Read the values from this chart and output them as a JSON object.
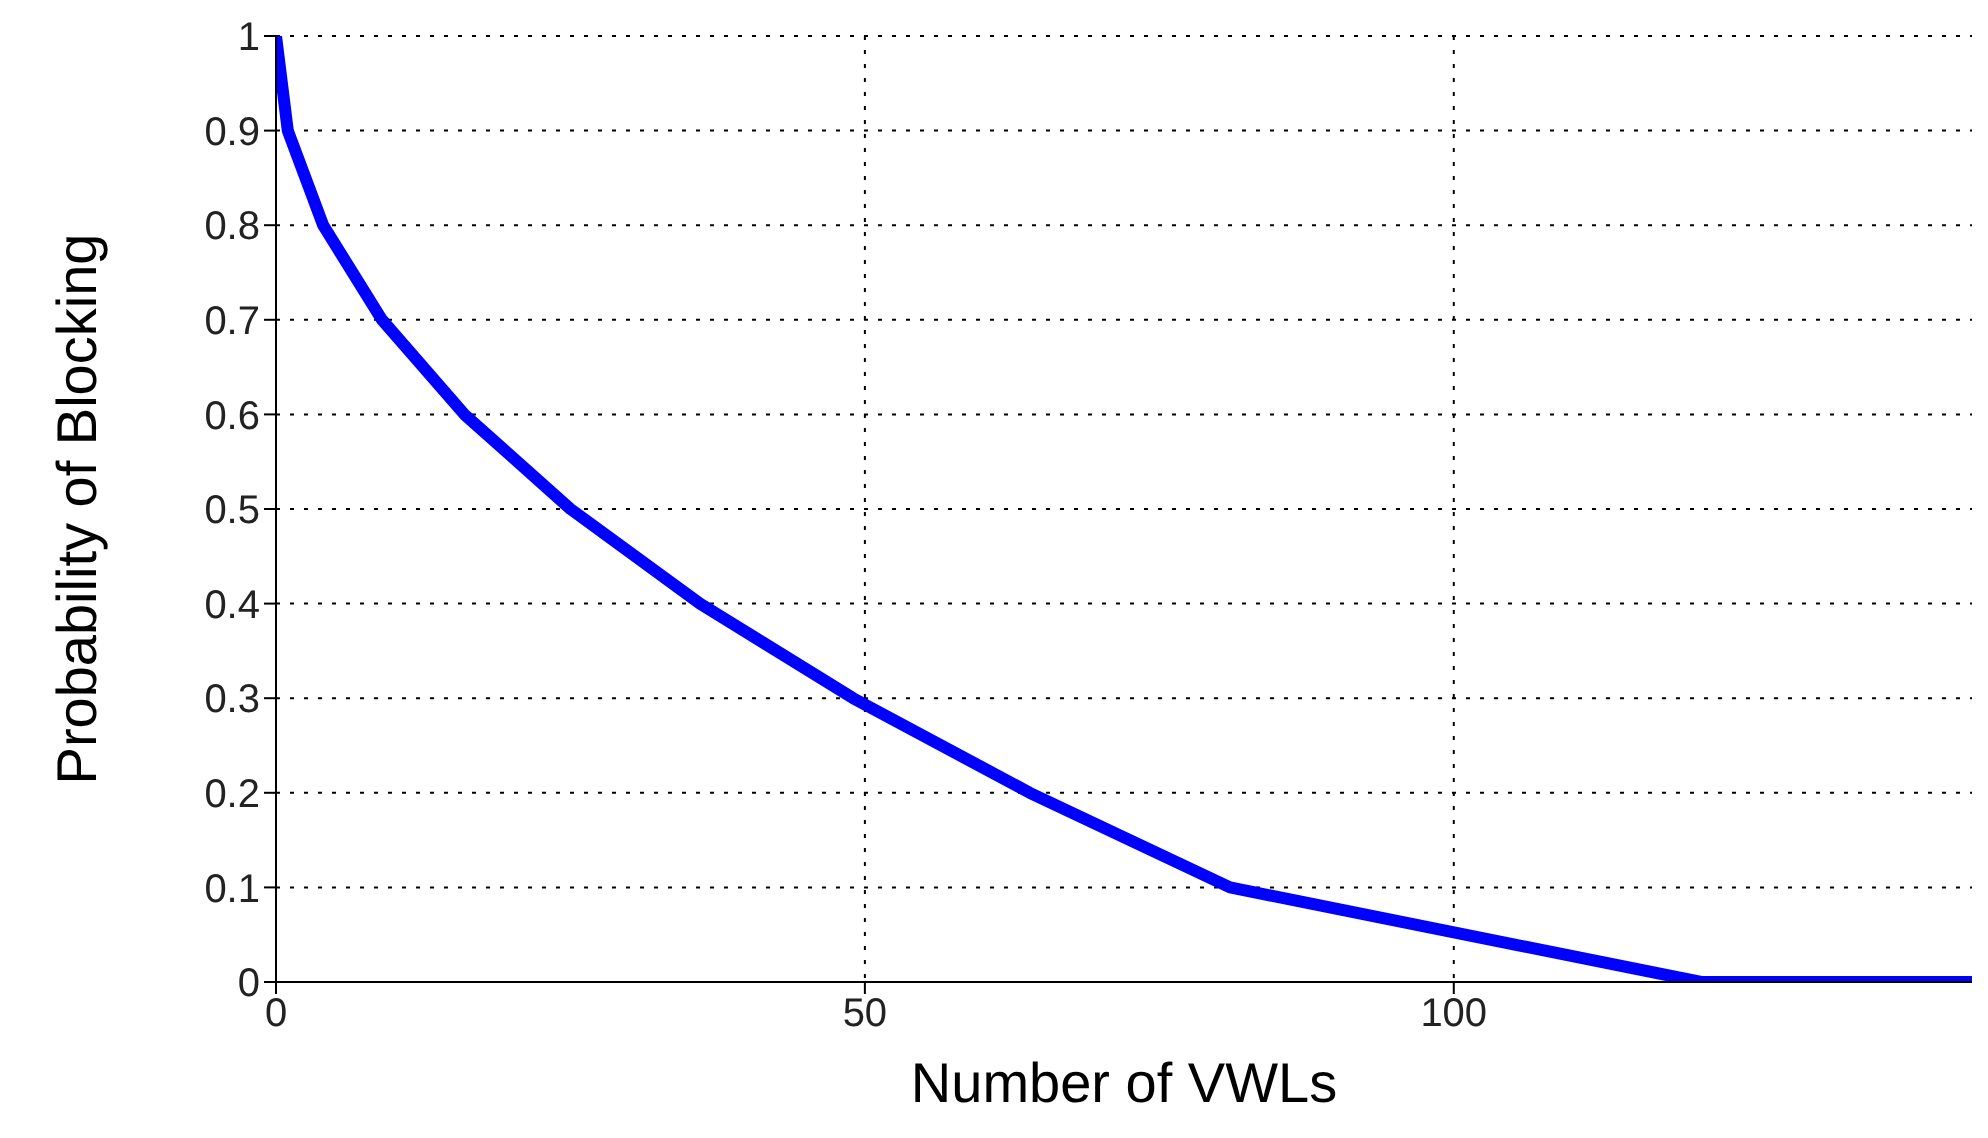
{
  "chart_data": {
    "type": "line",
    "xlabel": "Number of VWLs",
    "ylabel": "Probability of Blocking",
    "x": [
      0,
      1,
      4,
      9,
      16,
      25,
      36,
      49,
      64,
      81,
      121,
      144
    ],
    "series": [
      {
        "color": "#0000ff",
        "values": [
          1,
          0.9,
          0.8,
          0.7,
          0.6,
          0.5,
          0.4,
          0.3,
          0.2,
          0.1,
          0,
          0
        ]
      }
    ],
    "xlim": [
      0,
      144
    ],
    "xticks": [
      0,
      50,
      100
    ],
    "ylim": [
      0,
      1
    ],
    "yticks": [
      0,
      0.1,
      0.2,
      0.3,
      0.4,
      0.5,
      0.6,
      0.7,
      0.8,
      0.9,
      1
    ],
    "grid": true,
    "marker": "none",
    "line_style": "solid"
  }
}
